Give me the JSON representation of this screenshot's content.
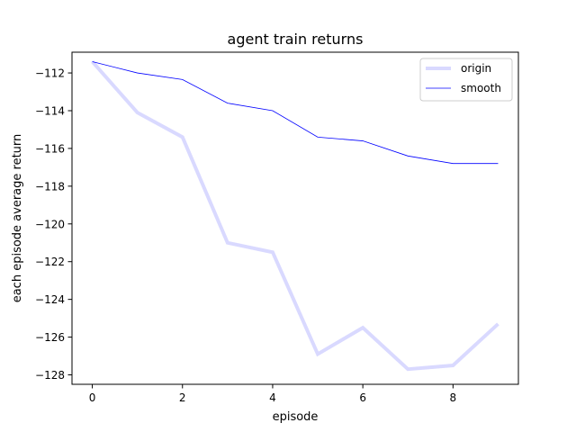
{
  "chart_data": {
    "type": "line",
    "title": "agent train returns",
    "xlabel": "episode",
    "ylabel": "each episode average return",
    "x": [
      0,
      1,
      2,
      3,
      4,
      5,
      6,
      7,
      8,
      9
    ],
    "series": [
      {
        "name": "origin",
        "color": "#0000ff",
        "opacity": 0.15,
        "values": [
          -111.4,
          -114.1,
          -115.4,
          -121.0,
          -121.5,
          -126.9,
          -125.5,
          -127.7,
          -127.5,
          -125.3
        ]
      },
      {
        "name": "smooth",
        "color": "#0000ff",
        "opacity": 1,
        "values": [
          -111.4,
          -112.0,
          -112.35,
          -113.6,
          -114.0,
          -115.4,
          -115.6,
          -116.4,
          -116.8,
          -116.8
        ]
      }
    ],
    "xlim": [
      -0.45,
      9.45
    ],
    "ylim": [
      -128.5,
      -110.9
    ],
    "xticks": [
      0,
      2,
      4,
      6,
      8
    ],
    "yticks": [
      -112,
      -114,
      -116,
      -118,
      -120,
      -122,
      -124,
      -126,
      -128
    ],
    "xtick_labels": [
      "0",
      "2",
      "4",
      "6",
      "8"
    ],
    "ytick_labels": [
      "−112",
      "−114",
      "−116",
      "−118",
      "−120",
      "−122",
      "−124",
      "−126",
      "−128"
    ],
    "grid": false,
    "legend_position": "upper right"
  }
}
